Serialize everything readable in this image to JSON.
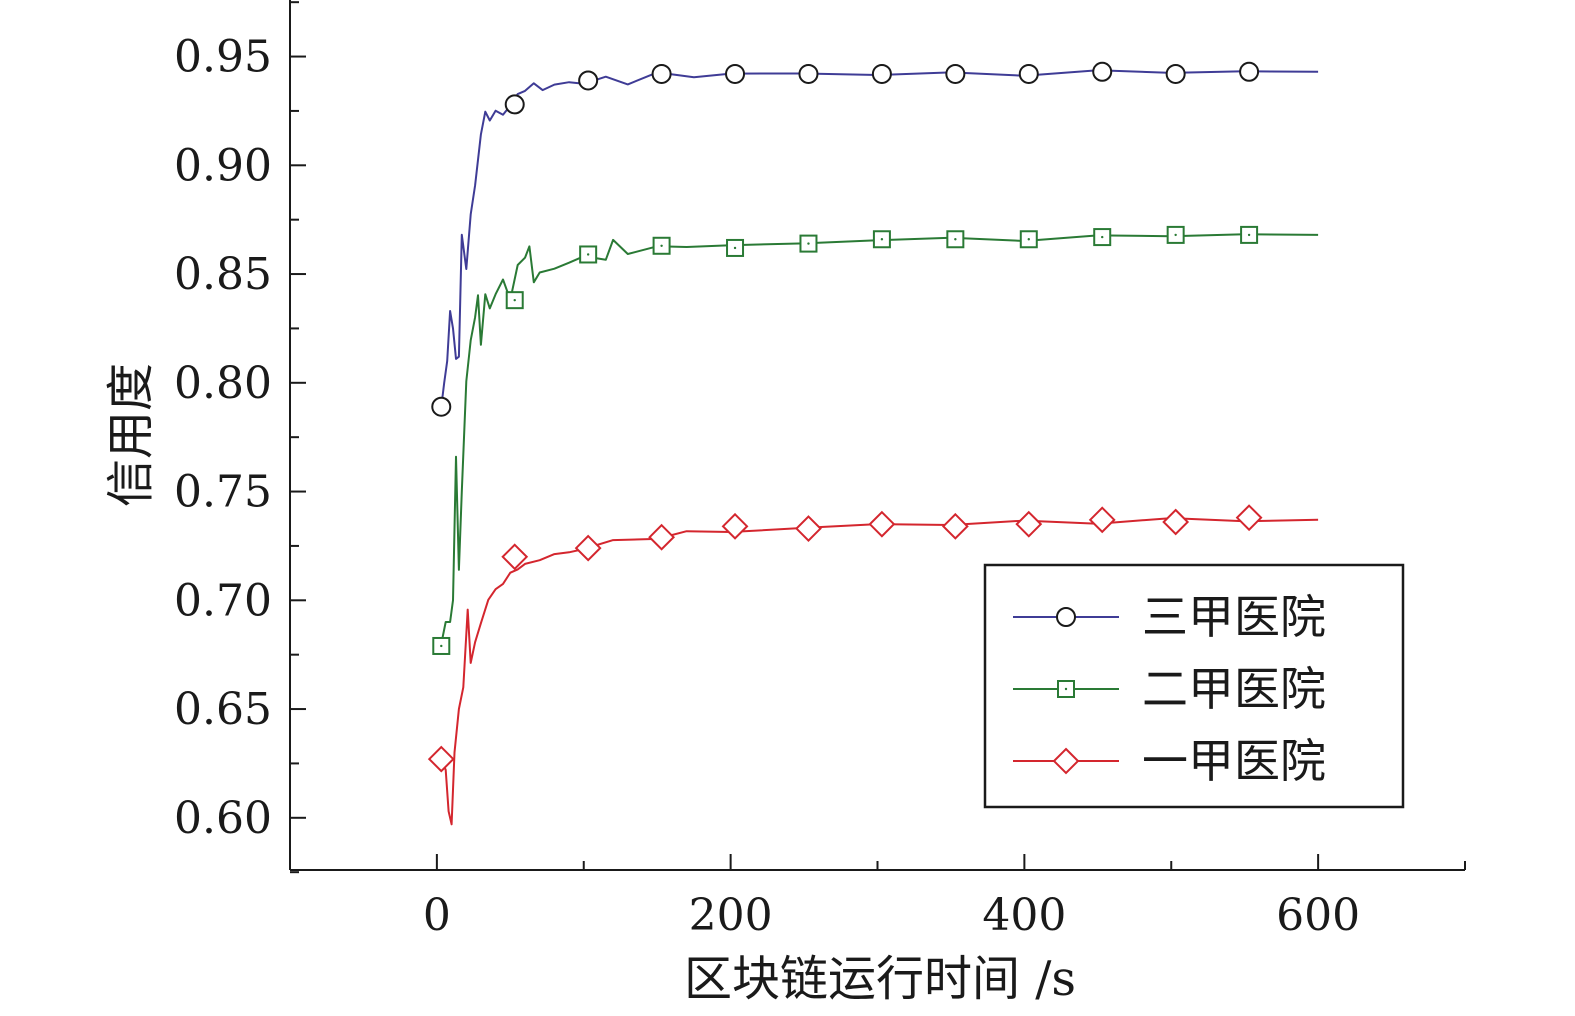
{
  "chart_data": {
    "type": "line",
    "title": "",
    "xlabel": "区块链运行时间 /s",
    "ylabel": "信用度",
    "xlim": [
      -100,
      700
    ],
    "ylim": [
      0.576,
      0.976
    ],
    "x_ticks": [
      0,
      200,
      400,
      600
    ],
    "x_tick_labels": [
      "0",
      "200",
      "400",
      "600"
    ],
    "y_ticks": [
      0.6,
      0.65,
      0.7,
      0.75,
      0.8,
      0.85,
      0.9,
      0.95
    ],
    "y_tick_labels": [
      "0.60",
      "0.65",
      "0.70",
      "0.75",
      "0.80",
      "0.85",
      "0.90",
      "0.95"
    ],
    "grid": false,
    "legend_position": "bottom-right",
    "series": [
      {
        "name": "三甲医院",
        "color": "#3f3c96",
        "marker": "circle",
        "x": [
          3,
          5,
          7,
          9,
          11,
          13,
          15,
          17,
          20,
          23,
          26,
          30,
          33,
          36,
          40,
          45,
          50,
          55,
          60,
          66,
          72,
          80,
          90,
          100,
          115,
          130,
          150,
          175,
          200,
          250,
          300,
          350,
          400,
          450,
          500,
          550,
          600
        ],
        "y": [
          0.789,
          0.8,
          0.81,
          0.833,
          0.825,
          0.811,
          0.812,
          0.868,
          0.852,
          0.878,
          0.89,
          0.915,
          0.924,
          0.921,
          0.925,
          0.923,
          0.928,
          0.932,
          0.935,
          0.937,
          0.935,
          0.937,
          0.938,
          0.938,
          0.94,
          0.938,
          0.942,
          0.941,
          0.942,
          0.942,
          0.942,
          0.942,
          0.942,
          0.943,
          0.943,
          0.943,
          0.943
        ],
        "markers": {
          "x": [
            3,
            53,
            103,
            153,
            203,
            253,
            303,
            353,
            403,
            453,
            503,
            553
          ],
          "y": [
            0.789,
            0.928,
            0.939,
            0.942,
            0.942,
            0.942,
            0.942,
            0.942,
            0.942,
            0.943,
            0.942,
            0.943
          ]
        }
      },
      {
        "name": "二甲医院",
        "color": "#2a7a35",
        "marker": "square",
        "x": [
          3,
          6,
          9,
          11,
          13,
          15,
          17,
          20,
          23,
          26,
          28,
          30,
          33,
          36,
          40,
          45,
          50,
          55,
          60,
          63,
          66,
          70,
          80,
          90,
          100,
          115,
          120,
          130,
          150,
          170,
          200,
          250,
          300,
          350,
          400,
          450,
          500,
          550,
          600
        ],
        "y": [
          0.68,
          0.69,
          0.69,
          0.7,
          0.766,
          0.714,
          0.75,
          0.8,
          0.82,
          0.83,
          0.84,
          0.818,
          0.84,
          0.835,
          0.84,
          0.848,
          0.838,
          0.854,
          0.858,
          0.862,
          0.847,
          0.85,
          0.853,
          0.855,
          0.858,
          0.857,
          0.865,
          0.86,
          0.862,
          0.863,
          0.863,
          0.864,
          0.866,
          0.866,
          0.866,
          0.867,
          0.868,
          0.868,
          0.868
        ],
        "markers": {
          "x": [
            3,
            53,
            103,
            153,
            203,
            253,
            303,
            353,
            403,
            453,
            503,
            553
          ],
          "y": [
            0.679,
            0.838,
            0.859,
            0.863,
            0.862,
            0.864,
            0.866,
            0.866,
            0.866,
            0.867,
            0.868,
            0.868
          ]
        }
      },
      {
        "name": "一甲医院",
        "color": "#d4262e",
        "marker": "diamond",
        "x": [
          3,
          6,
          8,
          10,
          12,
          15,
          18,
          21,
          23,
          26,
          30,
          35,
          40,
          45,
          50,
          55,
          60,
          70,
          80,
          90,
          100,
          120,
          150,
          170,
          200,
          250,
          300,
          350,
          400,
          450,
          500,
          550,
          600
        ],
        "y": [
          0.627,
          0.622,
          0.603,
          0.597,
          0.63,
          0.65,
          0.66,
          0.695,
          0.672,
          0.68,
          0.69,
          0.7,
          0.705,
          0.708,
          0.712,
          0.715,
          0.716,
          0.719,
          0.721,
          0.722,
          0.724,
          0.727,
          0.729,
          0.731,
          0.732,
          0.733,
          0.735,
          0.735,
          0.736,
          0.736,
          0.737,
          0.737,
          0.737
        ],
        "markers": {
          "x": [
            3,
            53,
            103,
            153,
            203,
            253,
            303,
            353,
            403,
            453,
            503,
            553
          ],
          "y": [
            0.627,
            0.72,
            0.724,
            0.729,
            0.734,
            0.733,
            0.735,
            0.734,
            0.735,
            0.737,
            0.736,
            0.738
          ]
        }
      }
    ]
  }
}
